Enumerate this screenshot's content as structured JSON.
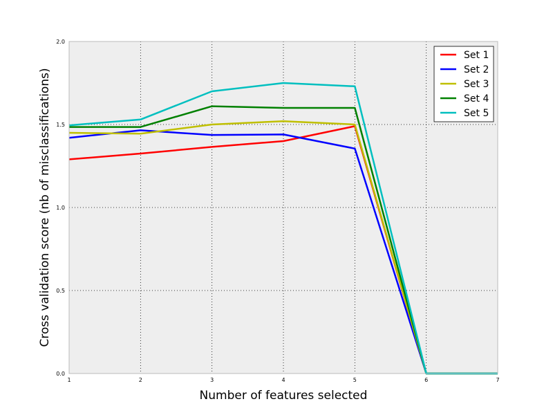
{
  "chart_data": {
    "type": "line",
    "title": "",
    "xlabel": "Number of features selected",
    "ylabel": "Cross validation score (nb of misclassifications)",
    "x": [
      1,
      2,
      3,
      4,
      5,
      6,
      7
    ],
    "xlim": [
      1,
      7
    ],
    "ylim": [
      0.0,
      2.0
    ],
    "xticks": [
      "1",
      "2",
      "3",
      "4",
      "5",
      "6",
      "7"
    ],
    "yticks": [
      "0.0",
      "0.5",
      "1.0",
      "1.5",
      "2.0"
    ],
    "grid": true,
    "legend_position": "top-right",
    "series": [
      {
        "name": "Set 1",
        "color": "#ff0000",
        "values": [
          1.29,
          1.325,
          1.365,
          1.4,
          1.49,
          0.0,
          0.0
        ]
      },
      {
        "name": "Set 2",
        "color": "#0000ff",
        "values": [
          1.42,
          1.465,
          1.437,
          1.44,
          1.355,
          0.0,
          0.0
        ]
      },
      {
        "name": "Set 3",
        "color": "#bfbf00",
        "values": [
          1.45,
          1.445,
          1.5,
          1.52,
          1.5,
          0.0,
          0.0
        ]
      },
      {
        "name": "Set 4",
        "color": "#008000",
        "values": [
          1.485,
          1.485,
          1.61,
          1.6,
          1.6,
          0.0,
          0.0
        ]
      },
      {
        "name": "Set 5",
        "color": "#00bfbf",
        "values": [
          1.495,
          1.53,
          1.7,
          1.75,
          1.73,
          0.0,
          0.0
        ]
      }
    ]
  }
}
